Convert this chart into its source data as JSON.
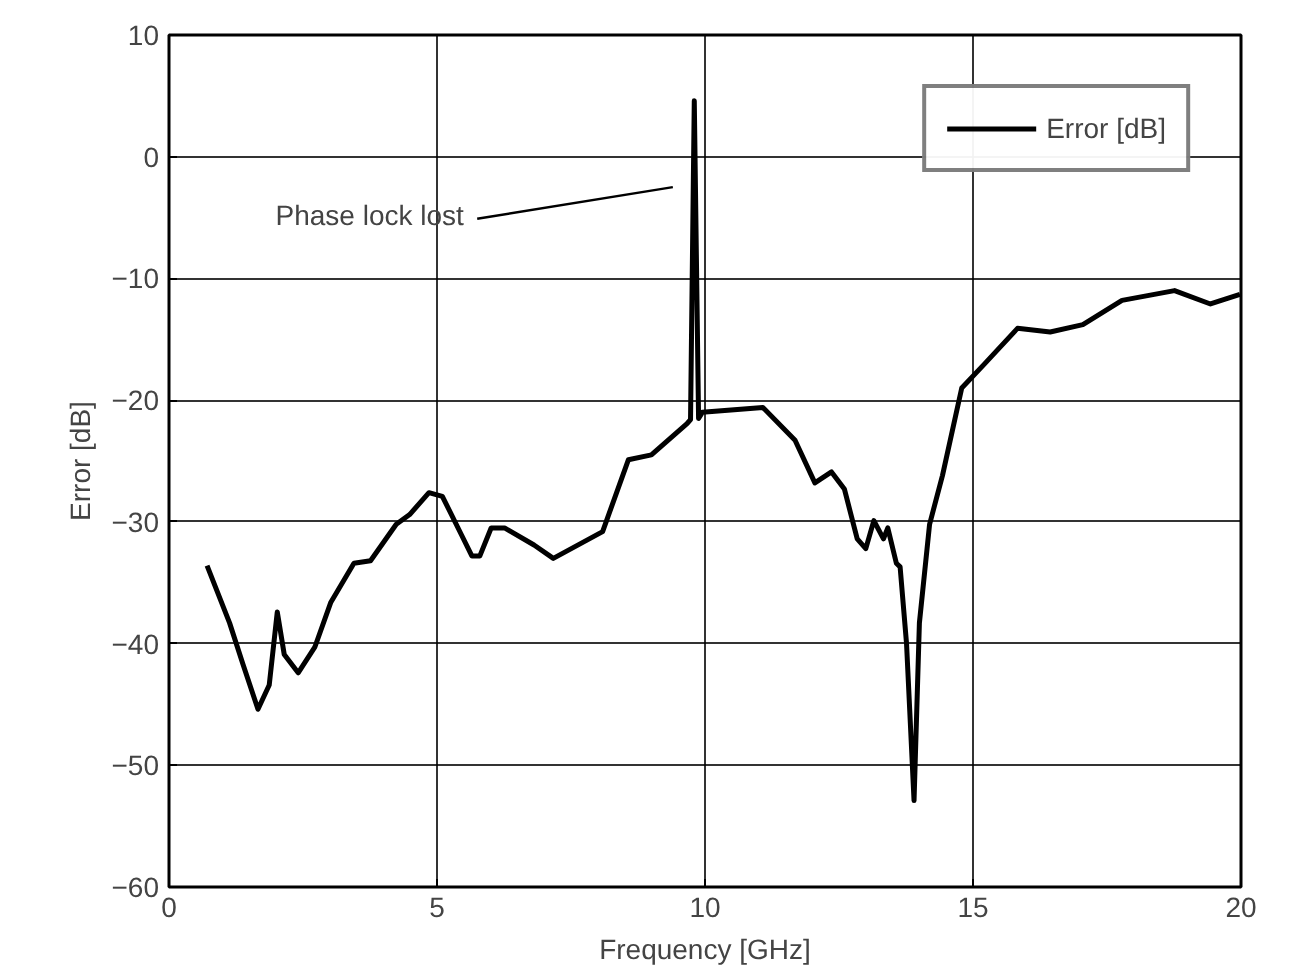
{
  "chart_data": {
    "type": "line",
    "xlabel": "Frequency [GHz]",
    "ylabel": "Error [dB]",
    "xlim": [
      0,
      20
    ],
    "ylim": [
      -60,
      10
    ],
    "xticks": [
      0,
      5,
      10,
      15,
      20
    ],
    "yticks": [
      -60,
      -50,
      -40,
      -30,
      -20,
      -10,
      0,
      10
    ],
    "grid": true,
    "legend": "top right",
    "line_style": "solid",
    "series": [
      {
        "name": "Error [dB]",
        "color": "#000000",
        "x": [
          0.71,
          1.13,
          1.38,
          1.66,
          1.87,
          2.02,
          2.15,
          2.41,
          2.72,
          3.02,
          3.45,
          3.76,
          4.24,
          4.49,
          4.85,
          5.1,
          5.46,
          5.65,
          5.8,
          6.01,
          6.26,
          6.81,
          7.17,
          8.09,
          8.57,
          9.0,
          9.67,
          9.73,
          9.8,
          9.88,
          9.95,
          11.08,
          11.68,
          12.05,
          12.36,
          12.6,
          12.84,
          13.0,
          13.15,
          13.33,
          13.41,
          13.57,
          13.64,
          13.76,
          13.9,
          14.0,
          14.19,
          14.43,
          14.79,
          15.22,
          15.83,
          16.44,
          17.05,
          17.78,
          18.76,
          19.43,
          19.98
        ],
        "values": [
          -33.6,
          -38.3,
          -41.7,
          -45.4,
          -43.4,
          -37.4,
          -40.9,
          -42.4,
          -40.3,
          -36.6,
          -33.4,
          -33.2,
          -30.2,
          -29.4,
          -27.6,
          -27.9,
          -31.1,
          -32.8,
          -32.8,
          -30.5,
          -30.5,
          -31.9,
          -33.0,
          -30.8,
          -24.9,
          -24.5,
          -21.9,
          -21.6,
          4.6,
          -21.5,
          -21.0,
          -20.6,
          -23.3,
          -26.8,
          -25.9,
          -27.3,
          -31.4,
          -32.2,
          -29.9,
          -31.4,
          -30.5,
          -33.4,
          -33.7,
          -40.0,
          -52.9,
          -38.3,
          -30.2,
          -26.2,
          -19.0,
          -17.0,
          -14.1,
          -14.4,
          -13.8,
          -11.8,
          -11.0,
          -12.1,
          -11.3
        ]
      }
    ],
    "annotations": [
      "Phase lock lost"
    ]
  }
}
